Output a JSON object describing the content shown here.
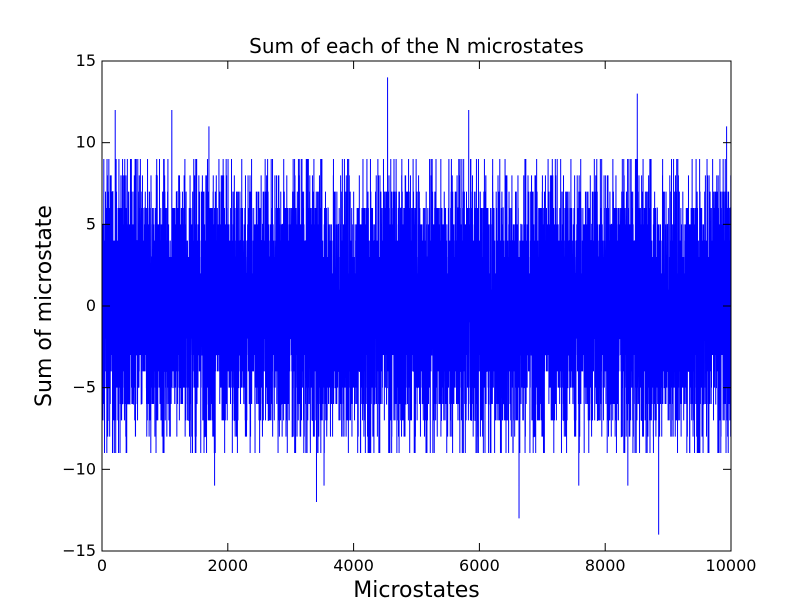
{
  "chart_data": {
    "type": "line",
    "title": "Sum of each of the N microstates",
    "xlabel": "Microstates",
    "ylabel": "Sum of microstate",
    "xlim": [
      0,
      10000
    ],
    "ylim": [
      -15,
      15
    ],
    "x_ticks": [
      0,
      2000,
      4000,
      6000,
      8000,
      10000
    ],
    "y_ticks": [
      -15,
      -10,
      -5,
      0,
      5,
      10,
      15
    ],
    "grid": false,
    "series": [
      {
        "color": "#0000ff",
        "n_points": 10000,
        "typical_range": [
          -7,
          7
        ],
        "peaks": [
          {
            "x": 210,
            "y": 12
          },
          {
            "x": 1110,
            "y": 12
          },
          {
            "x": 1700,
            "y": 11
          },
          {
            "x": 4540,
            "y": 14
          },
          {
            "x": 5830,
            "y": 12
          },
          {
            "x": 8510,
            "y": 13
          },
          {
            "x": 9930,
            "y": 11
          }
        ],
        "troughs": [
          {
            "x": 1790,
            "y": -11
          },
          {
            "x": 3410,
            "y": -12
          },
          {
            "x": 3530,
            "y": -11
          },
          {
            "x": 6630,
            "y": -13
          },
          {
            "x": 7580,
            "y": -11
          },
          {
            "x": 8360,
            "y": -11
          },
          {
            "x": 8850,
            "y": -14
          }
        ]
      }
    ]
  }
}
